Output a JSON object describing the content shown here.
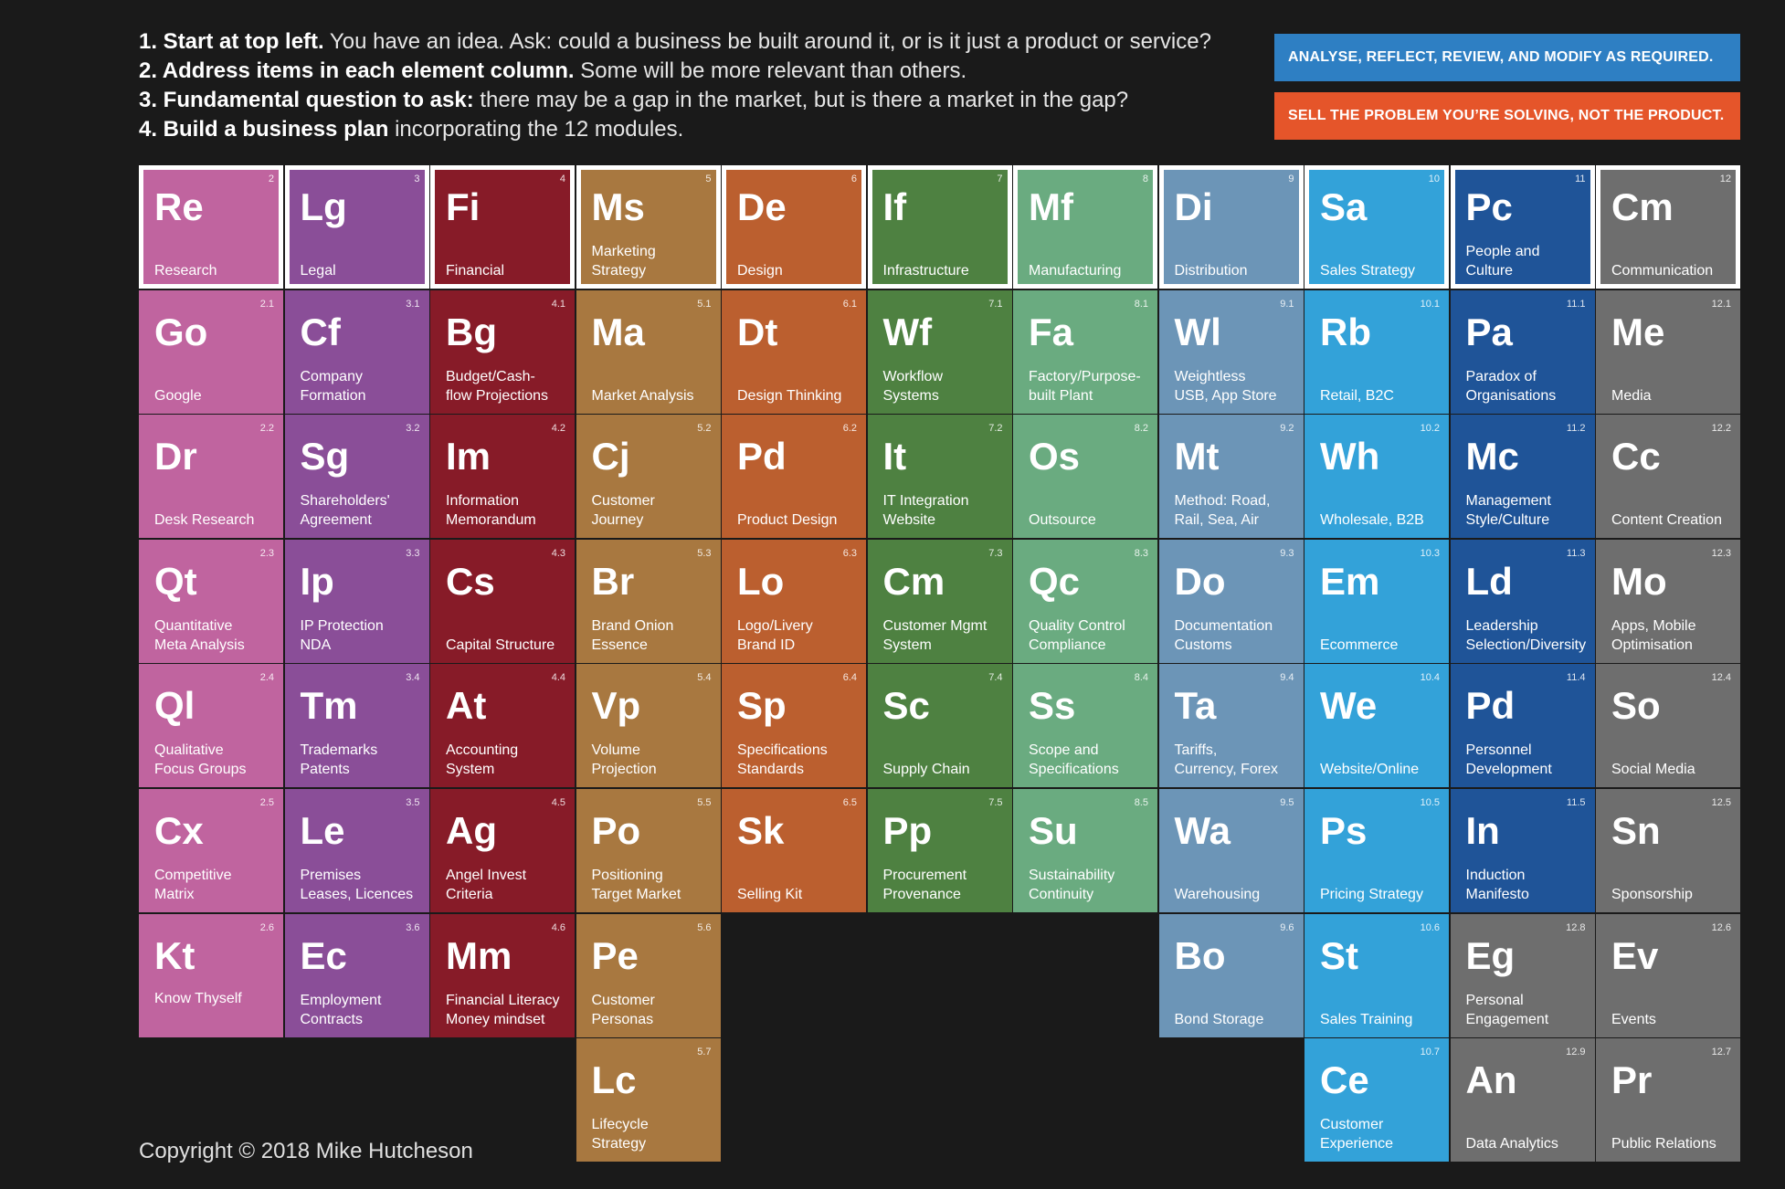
{
  "intro": [
    {
      "bold": "1. Start at top left.",
      "rest": " You have an idea. Ask: could a business be built around it, or is it just a product or service?"
    },
    {
      "bold": "2. Address items in each element column.",
      "rest": " Some will be more relevant than others."
    },
    {
      "bold": "3. Fundamental question to ask:",
      "rest": " there may be a gap in the market, but is there a market in the gap?"
    },
    {
      "bold": "4. Build a business plan",
      "rest": " incorporating the 12 modules."
    }
  ],
  "banners": {
    "blue": "ANALYSE, REFLECT, REVIEW, AND MODIFY AS REQUIRED.",
    "orange": "SELL THE PROBLEM YOU’RE SOLVING, NOT THE PRODUCT."
  },
  "colors": {
    "research": "#c0649f",
    "legal": "#8a4e98",
    "financial": "#871b28",
    "marketing": "#a87840",
    "design": "#bb5f2f",
    "infrastructure": "#4e8141",
    "manufacturing": "#6aab80",
    "distribution": "#6c95b7",
    "sales": "#33a2d9",
    "people": "#1f5498",
    "communication": "#6e6e6e"
  },
  "columns": [
    {
      "color": "research",
      "cells": [
        {
          "num": "2",
          "sym": "Re",
          "name": "Research",
          "header": true
        },
        {
          "num": "2.1",
          "sym": "Go",
          "name": "Google"
        },
        {
          "num": "2.2",
          "sym": "Dr",
          "name": "Desk Research"
        },
        {
          "num": "2.3",
          "sym": "Qt",
          "name": "Quantitative\nMeta Analysis"
        },
        {
          "num": "2.4",
          "sym": "Ql",
          "name": "Qualitative\nFocus Groups"
        },
        {
          "num": "2.5",
          "sym": "Cx",
          "name": "Competitive\nMatrix"
        },
        {
          "num": "2.6",
          "sym": "Kt",
          "name": "Know Thyself",
          "nameTop": true
        }
      ]
    },
    {
      "color": "legal",
      "cells": [
        {
          "num": "3",
          "sym": "Lg",
          "name": "Legal",
          "header": true
        },
        {
          "num": "3.1",
          "sym": "Cf",
          "name": "Company\nFormation"
        },
        {
          "num": "3.2",
          "sym": "Sg",
          "name": "Shareholders'\nAgreement"
        },
        {
          "num": "3.3",
          "sym": "Ip",
          "name": "IP Protection\nNDA"
        },
        {
          "num": "3.4",
          "sym": "Tm",
          "name": "Trademarks\nPatents"
        },
        {
          "num": "3.5",
          "sym": "Le",
          "name": "Premises\nLeases, Licences"
        },
        {
          "num": "3.6",
          "sym": "Ec",
          "name": "Employment\nContracts"
        }
      ]
    },
    {
      "color": "financial",
      "cells": [
        {
          "num": "4",
          "sym": "Fi",
          "name": "Financial",
          "header": true
        },
        {
          "num": "4.1",
          "sym": "Bg",
          "name": "Budget/Cash-\nflow Projections"
        },
        {
          "num": "4.2",
          "sym": "Im",
          "name": "Information\nMemorandum"
        },
        {
          "num": "4.3",
          "sym": "Cs",
          "name": "Capital Structure"
        },
        {
          "num": "4.4",
          "sym": "At",
          "name": "Accounting\nSystem"
        },
        {
          "num": "4.5",
          "sym": "Ag",
          "name": "Angel Invest\nCriteria"
        },
        {
          "num": "4.6",
          "sym": "Mm",
          "name": "Financial Literacy\nMoney mindset"
        }
      ]
    },
    {
      "color": "marketing",
      "cells": [
        {
          "num": "5",
          "sym": "Ms",
          "name": "Marketing\nStrategy",
          "header": true
        },
        {
          "num": "5.1",
          "sym": "Ma",
          "name": "Market Analysis"
        },
        {
          "num": "5.2",
          "sym": "Cj",
          "name": "Customer\nJourney"
        },
        {
          "num": "5.3",
          "sym": "Br",
          "name": "Brand Onion\nEssence"
        },
        {
          "num": "5.4",
          "sym": "Vp",
          "name": "Volume\nProjection"
        },
        {
          "num": "5.5",
          "sym": "Po",
          "name": "Positioning\nTarget Market"
        },
        {
          "num": "5.6",
          "sym": "Pe",
          "name": "Customer\nPersonas"
        },
        {
          "num": "5.7",
          "sym": "Lc",
          "name": "Lifecycle\nStrategy"
        }
      ]
    },
    {
      "color": "design",
      "cells": [
        {
          "num": "6",
          "sym": "De",
          "name": "Design",
          "header": true
        },
        {
          "num": "6.1",
          "sym": "Dt",
          "name": "Design Thinking"
        },
        {
          "num": "6.2",
          "sym": "Pd",
          "name": "Product Design"
        },
        {
          "num": "6.3",
          "sym": "Lo",
          "name": "Logo/Livery\nBrand ID"
        },
        {
          "num": "6.4",
          "sym": "Sp",
          "name": "Specifications\nStandards"
        },
        {
          "num": "6.5",
          "sym": "Sk",
          "name": "Selling Kit"
        }
      ]
    },
    {
      "color": "infrastructure",
      "cells": [
        {
          "num": "7",
          "sym": "If",
          "name": "Infrastructure",
          "header": true
        },
        {
          "num": "7.1",
          "sym": "Wf",
          "name": "Workflow\nSystems"
        },
        {
          "num": "7.2",
          "sym": "It",
          "name": "IT Integration\nWebsite"
        },
        {
          "num": "7.3",
          "sym": "Cm",
          "name": "Customer Mgmt\nSystem"
        },
        {
          "num": "7.4",
          "sym": "Sc",
          "name": "Supply Chain"
        },
        {
          "num": "7.5",
          "sym": "Pp",
          "name": "Procurement\nProvenance"
        }
      ]
    },
    {
      "color": "manufacturing",
      "cells": [
        {
          "num": "8",
          "sym": "Mf",
          "name": "Manufacturing",
          "header": true
        },
        {
          "num": "8.1",
          "sym": "Fa",
          "name": "Factory/Purpose-\nbuilt Plant"
        },
        {
          "num": "8.2",
          "sym": "Os",
          "name": "Outsource"
        },
        {
          "num": "8.3",
          "sym": "Qc",
          "name": "Quality Control\nCompliance"
        },
        {
          "num": "8.4",
          "sym": "Ss",
          "name": "Scope and\nSpecifications"
        },
        {
          "num": "8.5",
          "sym": "Su",
          "name": "Sustainability\nContinuity"
        }
      ]
    },
    {
      "color": "distribution",
      "cells": [
        {
          "num": "9",
          "sym": "Di",
          "name": "Distribution",
          "header": true
        },
        {
          "num": "9.1",
          "sym": "Wl",
          "name": "Weightless\nUSB, App Store"
        },
        {
          "num": "9.2",
          "sym": "Mt",
          "name": "Method: Road,\nRail, Sea, Air"
        },
        {
          "num": "9.3",
          "sym": "Do",
          "name": "Documentation\nCustoms"
        },
        {
          "num": "9.4",
          "sym": "Ta",
          "name": "Tariffs,\nCurrency, Forex"
        },
        {
          "num": "9.5",
          "sym": "Wa",
          "name": "Warehousing"
        },
        {
          "num": "9.6",
          "sym": "Bo",
          "name": "Bond Storage"
        }
      ]
    },
    {
      "color": "sales",
      "cells": [
        {
          "num": "10",
          "sym": "Sa",
          "name": "Sales Strategy",
          "header": true
        },
        {
          "num": "10.1",
          "sym": "Rb",
          "name": "Retail, B2C"
        },
        {
          "num": "10.2",
          "sym": "Wh",
          "name": "Wholesale, B2B"
        },
        {
          "num": "10.3",
          "sym": "Em",
          "name": "Ecommerce"
        },
        {
          "num": "10.4",
          "sym": "We",
          "name": "Website/Online"
        },
        {
          "num": "10.5",
          "sym": "Ps",
          "name": "Pricing Strategy"
        },
        {
          "num": "10.6",
          "sym": "St",
          "name": "Sales Training"
        },
        {
          "num": "10.7",
          "sym": "Ce",
          "name": "Customer\nExperience"
        }
      ]
    },
    {
      "color": "people",
      "cells": [
        {
          "num": "11",
          "sym": "Pc",
          "name": "People and\nCulture",
          "header": true
        },
        {
          "num": "11.1",
          "sym": "Pa",
          "name": "Paradox of\nOrganisations"
        },
        {
          "num": "11.2",
          "sym": "Mc",
          "name": "Management\nStyle/Culture"
        },
        {
          "num": "11.3",
          "sym": "Ld",
          "name": "Leadership\nSelection/Diversity"
        },
        {
          "num": "11.4",
          "sym": "Pd",
          "name": "Personnel\nDevelopment"
        },
        {
          "num": "11.5",
          "sym": "In",
          "name": "Induction\nManifesto"
        },
        {
          "num": "12.8",
          "sym": "Eg",
          "name": "Personal\nEngagement",
          "color": "communication"
        },
        {
          "num": "12.9",
          "sym": "An",
          "name": "Data Analytics",
          "color": "communication"
        }
      ]
    },
    {
      "color": "communication",
      "cells": [
        {
          "num": "12",
          "sym": "Cm",
          "name": "Communication",
          "header": true
        },
        {
          "num": "12.1",
          "sym": "Me",
          "name": "Media"
        },
        {
          "num": "12.2",
          "sym": "Cc",
          "name": "Content Creation"
        },
        {
          "num": "12.3",
          "sym": "Mo",
          "name": "Apps, Mobile\nOptimisation"
        },
        {
          "num": "12.4",
          "sym": "So",
          "name": "Social Media"
        },
        {
          "num": "12.5",
          "sym": "Sn",
          "name": "Sponsorship"
        },
        {
          "num": "12.6",
          "sym": "Ev",
          "name": "Events"
        },
        {
          "num": "12.7",
          "sym": "Pr",
          "name": "Public Relations"
        }
      ]
    }
  ],
  "copyright": "Copyright © 2018 Mike Hutcheson"
}
